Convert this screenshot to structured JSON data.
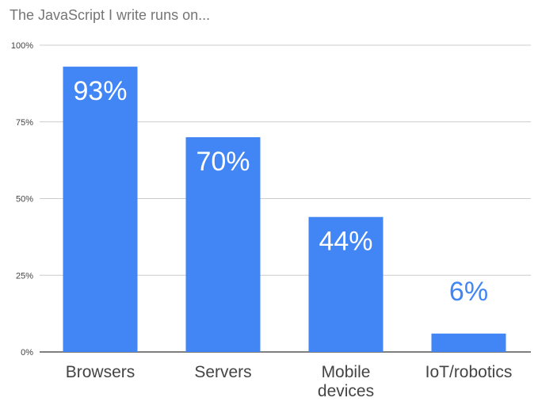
{
  "chart_data": {
    "type": "bar",
    "title": "The JavaScript I write runs on...",
    "xlabel": "",
    "ylabel": "",
    "categories": [
      [
        "Browsers"
      ],
      [
        "Servers"
      ],
      [
        "Mobile",
        "devices"
      ],
      [
        "IoT/robotics"
      ]
    ],
    "values": [
      93,
      70,
      44,
      6
    ],
    "data_labels": [
      "93%",
      "70%",
      "44%",
      "6%"
    ],
    "ylim": [
      0,
      100
    ],
    "yticks": [
      0,
      25,
      50,
      75,
      100
    ],
    "ytick_labels": [
      "0%",
      "25%",
      "50%",
      "75%",
      "100%"
    ],
    "grid": true,
    "legend": "none",
    "colors": {
      "bar": "#4285f4",
      "label_inside": "#ffffff",
      "label_outside": "#4285f4",
      "grid": "#cccccc",
      "axis": "#333333",
      "tick_text": "#444444",
      "category_text": "#444444"
    }
  }
}
